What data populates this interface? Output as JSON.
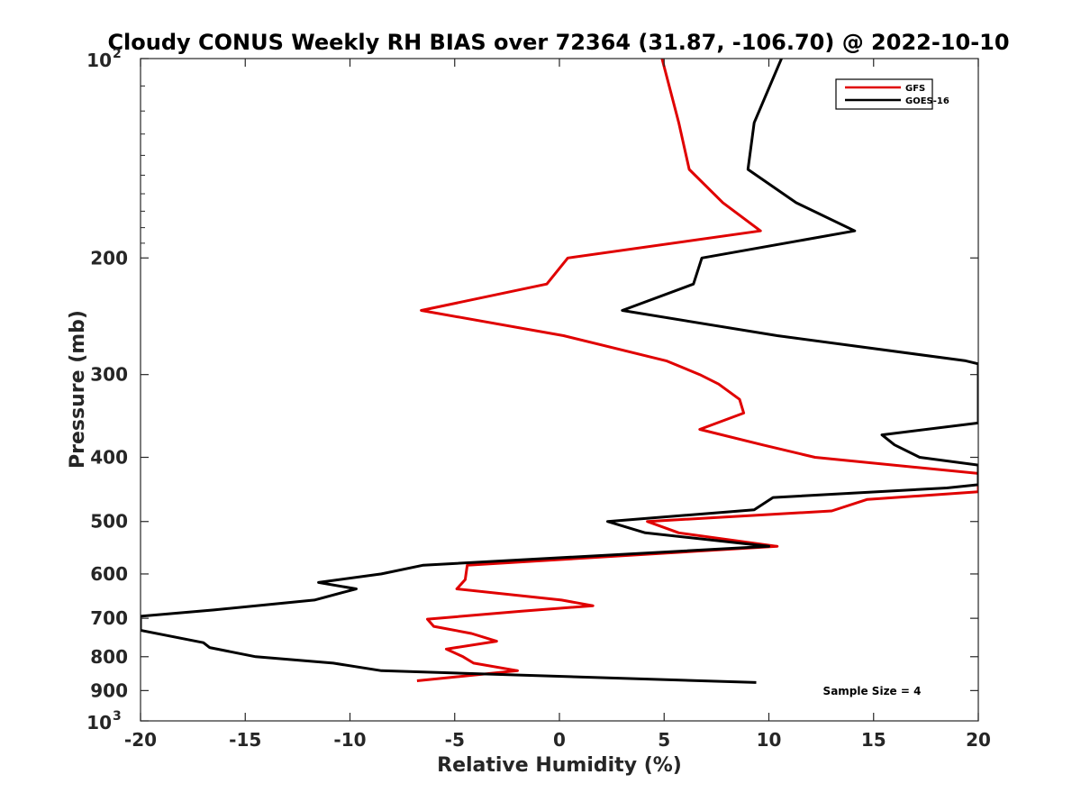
{
  "chart_data": {
    "type": "line",
    "title": "Cloudy CONUS Weekly RH BIAS over 72364 (31.87, -106.70) @ 2022-10-10",
    "xlabel": "Relative Humidity (%)",
    "ylabel": "Pressure (mb)",
    "xlim": [
      -20,
      20
    ],
    "ylim": [
      100,
      1000
    ],
    "yscale": "log",
    "y_reversed": true,
    "xticks": [
      -20,
      -15,
      -10,
      -5,
      0,
      5,
      10,
      15,
      20
    ],
    "xtick_labels": [
      "-20",
      "-15",
      "-10",
      "-5",
      "0",
      "5",
      "10",
      "15",
      "20"
    ],
    "yticks_plain": [
      200,
      300,
      400,
      500,
      600,
      700,
      800,
      900
    ],
    "yticks_plain_labels": [
      "200",
      "300",
      "400",
      "500",
      "600",
      "700",
      "800",
      "900"
    ],
    "yticks_power": [
      {
        "value": 100,
        "base": "10",
        "exp": "2"
      },
      {
        "value": 1000,
        "base": "10",
        "exp": "3"
      }
    ],
    "grid": false,
    "legend_position": "top-right",
    "annotation": "Sample Size = 4",
    "series": [
      {
        "name": "GFS",
        "color": "#e00000",
        "points": [
          [
            4.9,
            100
          ],
          [
            5.7,
            125
          ],
          [
            6.2,
            147
          ],
          [
            7.8,
            165
          ],
          [
            9.6,
            182
          ],
          [
            0.4,
            200
          ],
          [
            -0.6,
            219
          ],
          [
            -6.6,
            240
          ],
          [
            0.2,
            262
          ],
          [
            5.1,
            286
          ],
          [
            6.7,
            300
          ],
          [
            7.6,
            310
          ],
          [
            8.6,
            327
          ],
          [
            8.8,
            343
          ],
          [
            6.7,
            363
          ],
          [
            9.7,
            383
          ],
          [
            12.2,
            400
          ],
          [
            20,
            423
          ],
          [
            20,
            451
          ],
          [
            14.7,
            463
          ],
          [
            13.0,
            482
          ],
          [
            4.2,
            500
          ],
          [
            5.7,
            520
          ],
          [
            10.4,
            545
          ],
          [
            -4.4,
            582
          ],
          [
            -4.5,
            612
          ],
          [
            -4.9,
            632
          ],
          [
            0.1,
            657
          ],
          [
            1.6,
            670
          ],
          [
            -1.8,
            683
          ],
          [
            -6.3,
            702
          ],
          [
            -6.0,
            720
          ],
          [
            -4.2,
            738
          ],
          [
            -3.0,
            758
          ],
          [
            -5.4,
            779
          ],
          [
            -4.6,
            800
          ],
          [
            -4.1,
            818
          ],
          [
            -2.0,
            840
          ],
          [
            -6.8,
            870
          ]
        ]
      },
      {
        "name": "GOES-16",
        "color": "#000000",
        "points": [
          [
            10.6,
            100
          ],
          [
            9.3,
            125
          ],
          [
            9.0,
            147
          ],
          [
            11.3,
            165
          ],
          [
            14.1,
            182
          ],
          [
            6.8,
            200
          ],
          [
            6.4,
            219
          ],
          [
            3.0,
            240
          ],
          [
            10.4,
            262
          ],
          [
            19.4,
            286
          ],
          [
            20,
            289
          ],
          [
            20,
            355
          ],
          [
            15.4,
            370
          ],
          [
            16.0,
            383
          ],
          [
            17.2,
            400
          ],
          [
            20,
            411
          ],
          [
            20,
            440
          ],
          [
            18.5,
            445
          ],
          [
            10.2,
            460
          ],
          [
            9.3,
            480
          ],
          [
            2.3,
            500
          ],
          [
            4.1,
            520
          ],
          [
            10.0,
            545
          ],
          [
            -6.5,
            582
          ],
          [
            -8.5,
            600
          ],
          [
            -11.5,
            618
          ],
          [
            -9.7,
            632
          ],
          [
            -11.7,
            657
          ],
          [
            -16.5,
            680
          ],
          [
            -20,
            695
          ],
          [
            -20,
            730
          ],
          [
            -17.0,
            762
          ],
          [
            -16.7,
            775
          ],
          [
            -14.5,
            800
          ],
          [
            -10.8,
            818
          ],
          [
            -8.5,
            840
          ],
          [
            9.4,
            875
          ]
        ]
      }
    ]
  }
}
